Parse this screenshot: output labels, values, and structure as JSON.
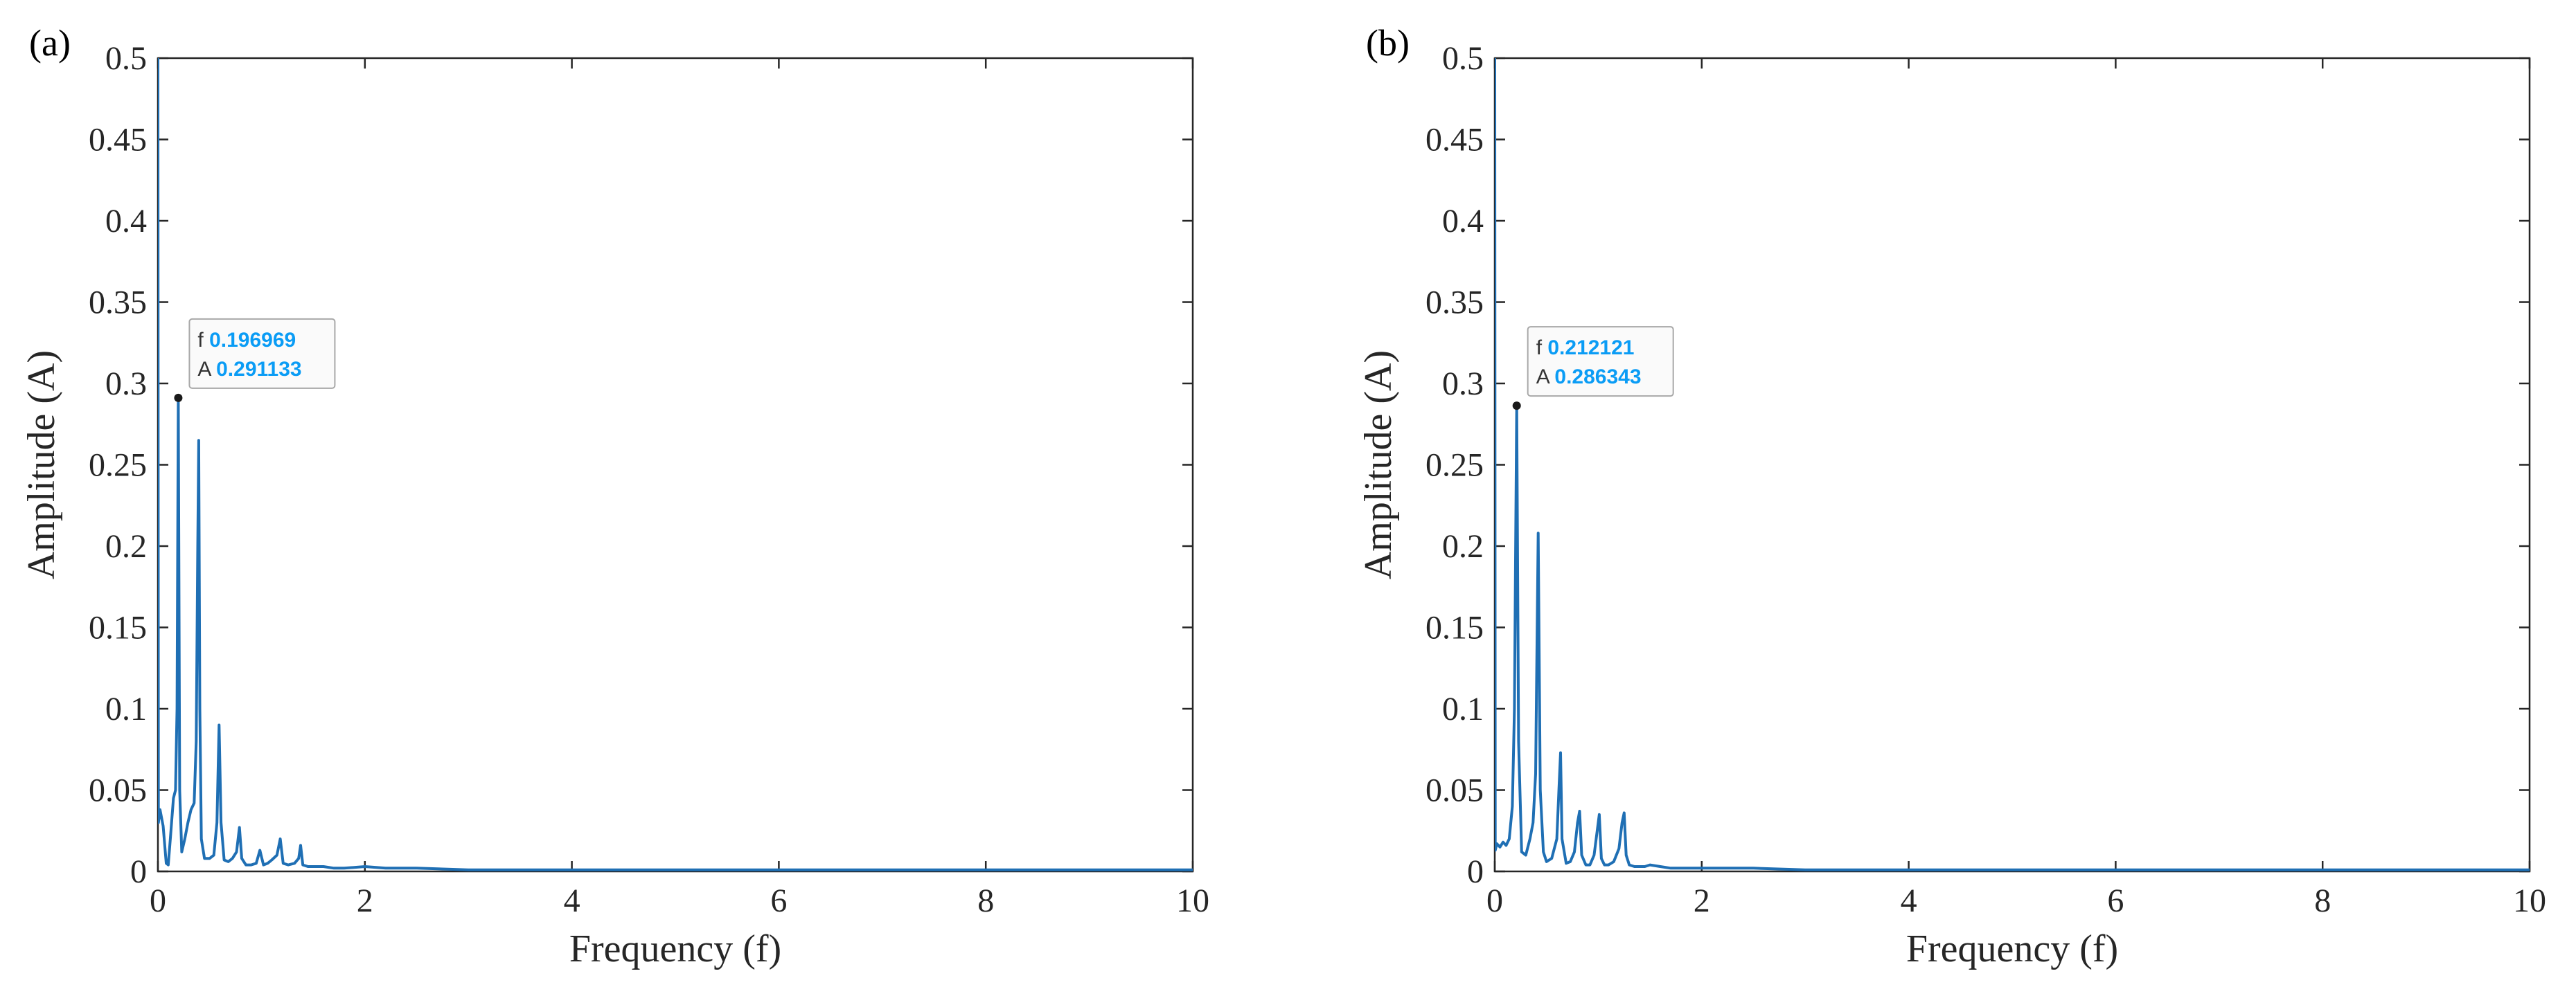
{
  "chart_data": [
    {
      "type": "line",
      "panel_label": "(a)",
      "xlabel": "Frequency (f)",
      "ylabel": "Amplitude (A)",
      "xlim": [
        0,
        10
      ],
      "ylim": [
        0,
        0.5
      ],
      "xticks": [
        0,
        2,
        4,
        6,
        8,
        10
      ],
      "xtick_labels": [
        "0",
        "2",
        "4",
        "6",
        "8",
        "10"
      ],
      "yticks": [
        0,
        0.05,
        0.1,
        0.15,
        0.2,
        0.25,
        0.3,
        0.35,
        0.4,
        0.45,
        0.5
      ],
      "ytick_labels": [
        "0",
        "0.05",
        "0.1",
        "0.15",
        "0.2",
        "0.25",
        "0.3",
        "0.35",
        "0.4",
        "0.45",
        "0.5"
      ],
      "grid": false,
      "line_color": "#1f6fb4",
      "series": [
        {
          "x": [
            0,
            0.005,
            0.02,
            0.05,
            0.08,
            0.1,
            0.12,
            0.15,
            0.17,
            0.185,
            0.197,
            0.21,
            0.23,
            0.26,
            0.29,
            0.32,
            0.35,
            0.37,
            0.385,
            0.394,
            0.405,
            0.42,
            0.45,
            0.5,
            0.54,
            0.57,
            0.591,
            0.61,
            0.64,
            0.68,
            0.72,
            0.76,
            0.788,
            0.81,
            0.85,
            0.9,
            0.95,
            0.985,
            1.02,
            1.06,
            1.1,
            1.15,
            1.182,
            1.21,
            1.26,
            1.32,
            1.36,
            1.379,
            1.4,
            1.45,
            1.5,
            1.6,
            1.7,
            1.8,
            2.0,
            2.2,
            2.5,
            3.0,
            4.0,
            5.0,
            6.0,
            7.0,
            8.0,
            9.0,
            10.0
          ],
          "y": [
            0.5,
            0.03,
            0.038,
            0.028,
            0.005,
            0.004,
            0.02,
            0.045,
            0.05,
            0.1,
            0.291133,
            0.05,
            0.012,
            0.02,
            0.03,
            0.038,
            0.042,
            0.08,
            0.2,
            0.265,
            0.1,
            0.02,
            0.008,
            0.008,
            0.01,
            0.03,
            0.09,
            0.03,
            0.007,
            0.006,
            0.008,
            0.012,
            0.027,
            0.008,
            0.004,
            0.004,
            0.005,
            0.013,
            0.004,
            0.005,
            0.007,
            0.01,
            0.02,
            0.005,
            0.004,
            0.005,
            0.008,
            0.016,
            0.004,
            0.003,
            0.003,
            0.003,
            0.002,
            0.002,
            0.003,
            0.002,
            0.002,
            0.001,
            0.001,
            0.001,
            0.001,
            0.001,
            0.001,
            0.001,
            0.001
          ]
        }
      ],
      "datatip": {
        "x_label": "f",
        "y_label": "A",
        "x_value": "0.196969",
        "y_value": "0.291133",
        "x": 0.196969,
        "y": 0.291133
      }
    },
    {
      "type": "line",
      "panel_label": "(b)",
      "xlabel": "Frequency (f)",
      "ylabel": "Amplitude (A)",
      "xlim": [
        0,
        10
      ],
      "ylim": [
        0,
        0.5
      ],
      "xticks": [
        0,
        2,
        4,
        6,
        8,
        10
      ],
      "xtick_labels": [
        "0",
        "2",
        "4",
        "6",
        "8",
        "10"
      ],
      "yticks": [
        0,
        0.05,
        0.1,
        0.15,
        0.2,
        0.25,
        0.3,
        0.35,
        0.4,
        0.45,
        0.5
      ],
      "ytick_labels": [
        "0",
        "0.05",
        "0.1",
        "0.15",
        "0.2",
        "0.25",
        "0.3",
        "0.35",
        "0.4",
        "0.45",
        "0.5"
      ],
      "grid": false,
      "line_color": "#1f6fb4",
      "series": [
        {
          "x": [
            0,
            0.005,
            0.02,
            0.05,
            0.08,
            0.11,
            0.14,
            0.17,
            0.19,
            0.212,
            0.23,
            0.26,
            0.3,
            0.34,
            0.37,
            0.395,
            0.42,
            0.44,
            0.47,
            0.5,
            0.55,
            0.6,
            0.62,
            0.636,
            0.65,
            0.69,
            0.73,
            0.77,
            0.8,
            0.82,
            0.84,
            0.88,
            0.92,
            0.96,
            0.99,
            1.01,
            1.03,
            1.06,
            1.1,
            1.15,
            1.2,
            1.23,
            1.25,
            1.27,
            1.3,
            1.35,
            1.4,
            1.45,
            1.5,
            1.6,
            1.7,
            1.8,
            2.0,
            2.2,
            2.5,
            3.0,
            4.0,
            5.0,
            6.0,
            7.0,
            8.0,
            9.0,
            10.0
          ],
          "y": [
            0.5,
            0.013,
            0.017,
            0.015,
            0.018,
            0.016,
            0.02,
            0.04,
            0.1,
            0.286343,
            0.08,
            0.012,
            0.01,
            0.02,
            0.03,
            0.06,
            0.208,
            0.05,
            0.012,
            0.006,
            0.008,
            0.02,
            0.05,
            0.073,
            0.02,
            0.005,
            0.006,
            0.012,
            0.03,
            0.037,
            0.01,
            0.004,
            0.004,
            0.01,
            0.025,
            0.035,
            0.008,
            0.004,
            0.004,
            0.006,
            0.014,
            0.03,
            0.036,
            0.01,
            0.004,
            0.003,
            0.003,
            0.003,
            0.004,
            0.003,
            0.002,
            0.002,
            0.002,
            0.002,
            0.002,
            0.001,
            0.001,
            0.001,
            0.001,
            0.001,
            0.001,
            0.001,
            0.001
          ]
        }
      ],
      "datatip": {
        "x_label": "f",
        "y_label": "A",
        "x_value": "0.212121",
        "y_value": "0.286343",
        "x": 0.212121,
        "y": 0.286343
      }
    }
  ]
}
